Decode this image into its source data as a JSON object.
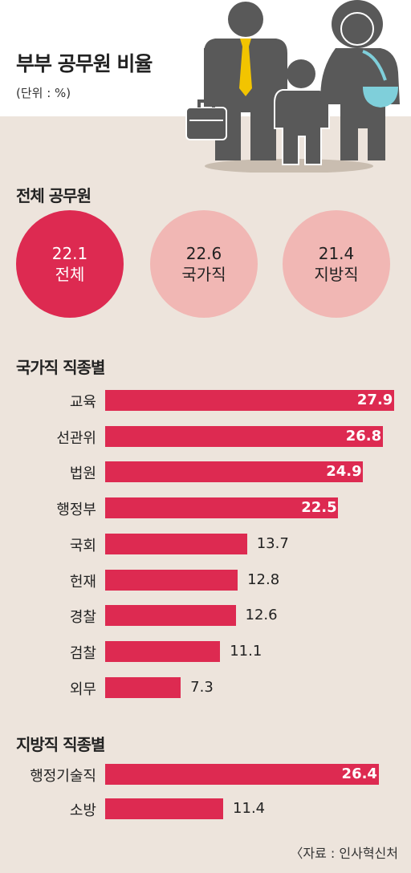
{
  "header": {
    "title": "부부 공무원 비율",
    "unit": "(단위 : %)"
  },
  "overall": {
    "section_title": "전체 공무원",
    "circles": [
      {
        "value": "22.1",
        "label": "전체"
      },
      {
        "value": "22.6",
        "label": "국가직"
      },
      {
        "value": "21.4",
        "label": "지방직"
      }
    ]
  },
  "national": {
    "section_title": "국가직 직종별"
  },
  "local": {
    "section_title": "지방직 직종별"
  },
  "source": "〈자료 : 인사혁신처",
  "colors": {
    "accent": "#dd2a51",
    "circle_light": "#f1b7b4",
    "background": "#ede4dc"
  },
  "chart_data": [
    {
      "type": "bar",
      "orientation": "horizontal",
      "title": "국가직 직종별",
      "categories": [
        "교육",
        "선관위",
        "법원",
        "행정부",
        "국회",
        "헌재",
        "경찰",
        "검찰",
        "외무"
      ],
      "values": [
        27.9,
        26.8,
        24.9,
        22.5,
        13.7,
        12.8,
        12.6,
        11.1,
        7.3
      ],
      "labels": [
        "27.9",
        "26.8",
        "24.9",
        "22.5",
        "13.7",
        "12.8",
        "12.6",
        "11.1",
        "7.3"
      ],
      "unit": "%"
    },
    {
      "type": "bar",
      "orientation": "horizontal",
      "title": "지방직 직종별",
      "categories": [
        "행정기술직",
        "소방"
      ],
      "values": [
        26.4,
        11.4
      ],
      "labels": [
        "26.4",
        "11.4"
      ],
      "unit": "%"
    }
  ]
}
